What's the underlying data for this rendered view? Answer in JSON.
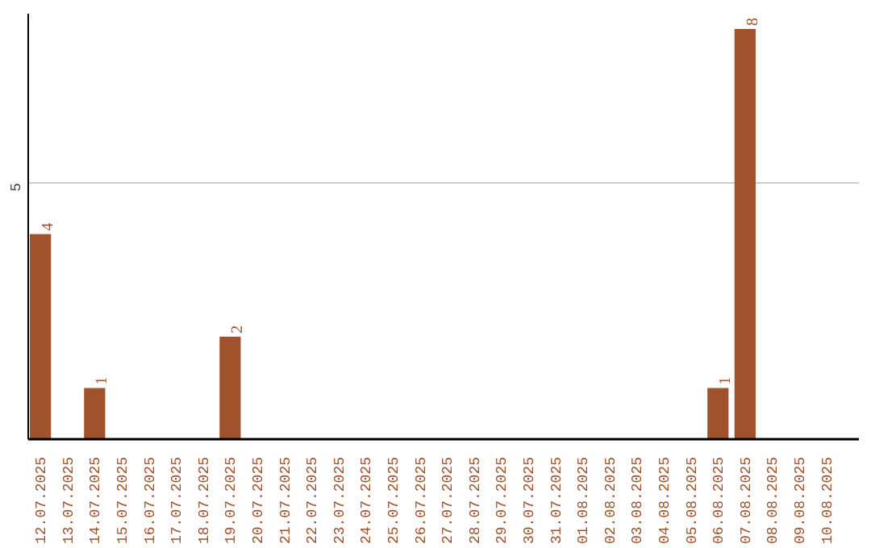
{
  "chart_data": {
    "type": "bar",
    "categories": [
      "12.07.2025",
      "13.07.2025",
      "14.07.2025",
      "15.07.2025",
      "16.07.2025",
      "17.07.2025",
      "18.07.2025",
      "19.07.2025",
      "20.07.2025",
      "21.07.2025",
      "22.07.2025",
      "23.07.2025",
      "24.07.2025",
      "25.07.2025",
      "26.07.2025",
      "27.07.2025",
      "28.07.2025",
      "29.07.2025",
      "30.07.2025",
      "31.07.2025",
      "01.08.2025",
      "02.08.2025",
      "03.08.2025",
      "04.08.2025",
      "05.08.2025",
      "06.08.2025",
      "07.08.2025",
      "08.08.2025",
      "09.08.2025",
      "10.08.2025"
    ],
    "values": [
      4,
      0,
      1,
      0,
      0,
      0,
      0,
      2,
      0,
      0,
      0,
      0,
      0,
      0,
      0,
      0,
      0,
      0,
      0,
      0,
      0,
      0,
      0,
      0,
      0,
      1,
      8,
      0,
      0,
      0
    ],
    "color": "#a0522d",
    "ylim": [
      0,
      8.3
    ],
    "yticks": [
      5
    ],
    "grid": "y",
    "value_labels": [
      "4",
      null,
      "1",
      null,
      null,
      null,
      null,
      "2",
      null,
      null,
      null,
      null,
      null,
      null,
      null,
      null,
      null,
      null,
      null,
      null,
      null,
      null,
      null,
      null,
      null,
      "1",
      "8",
      null,
      null,
      null
    ]
  }
}
